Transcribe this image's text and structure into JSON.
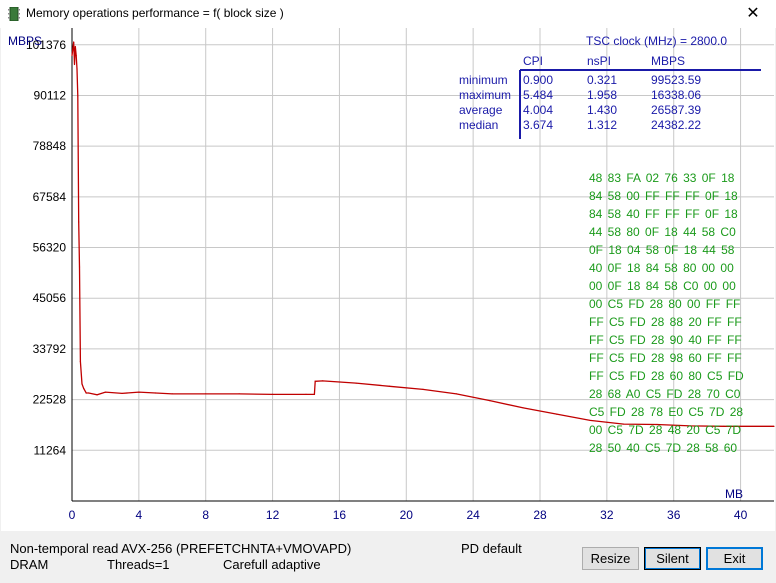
{
  "window": {
    "title": "Memory operations performance = f( block size )"
  },
  "chart_data": {
    "type": "line",
    "title": "",
    "ylabel": "MBPS",
    "xlabel": "MB",
    "x_ticks": [
      0,
      4,
      8,
      12,
      16,
      20,
      24,
      28,
      32,
      36,
      40
    ],
    "y_ticks": [
      11264,
      22528,
      33792,
      45056,
      56320,
      67584,
      78848,
      90112,
      101376
    ],
    "xlim": [
      0,
      42
    ],
    "ylim": [
      0,
      104000
    ],
    "grid": true,
    "series": [
      {
        "color": "#c00000",
        "points": [
          [
            0,
            99000
          ],
          [
            0.1,
            102000
          ],
          [
            0.15,
            97000
          ],
          [
            0.2,
            101000
          ],
          [
            0.25,
            99000
          ],
          [
            0.3,
            96000
          ],
          [
            0.35,
            90000
          ],
          [
            0.4,
            62000
          ],
          [
            0.45,
            52000
          ],
          [
            0.5,
            31000
          ],
          [
            0.6,
            26000
          ],
          [
            0.7,
            25000
          ],
          [
            0.85,
            24000
          ],
          [
            1.0,
            24000
          ],
          [
            1.5,
            23600
          ],
          [
            2,
            24200
          ],
          [
            3,
            23900
          ],
          [
            4,
            24200
          ],
          [
            5,
            24000
          ],
          [
            6,
            23800
          ],
          [
            8,
            23800
          ],
          [
            10,
            23800
          ],
          [
            12,
            23700
          ],
          [
            14,
            23700
          ],
          [
            14.5,
            23700
          ],
          [
            14.55,
            26600
          ],
          [
            15,
            26700
          ],
          [
            17,
            26200
          ],
          [
            19,
            25500
          ],
          [
            21,
            24800
          ],
          [
            23,
            23800
          ],
          [
            25,
            22300
          ],
          [
            27,
            20700
          ],
          [
            29,
            19300
          ],
          [
            31,
            17900
          ],
          [
            33,
            17100
          ],
          [
            35,
            17000
          ],
          [
            37,
            16700
          ],
          [
            39,
            16600
          ],
          [
            42,
            16600
          ]
        ]
      }
    ]
  },
  "tsc": {
    "label": "TSC clock (MHz) = ",
    "value": "2800.0"
  },
  "stats": {
    "headers": [
      "CPI",
      "nsPI",
      "MBPS"
    ],
    "rows": [
      {
        "name": "minimum",
        "cpi": "0.900",
        "nspi": "0.321",
        "mbps": "99523.59"
      },
      {
        "name": "maximum",
        "cpi": "5.484",
        "nspi": "1.958",
        "mbps": "16338.06"
      },
      {
        "name": "average",
        "cpi": "4.004",
        "nspi": "1.430",
        "mbps": "26587.39"
      },
      {
        "name": "median",
        "cpi": "3.674",
        "nspi": "1.312",
        "mbps": "24382.22"
      }
    ]
  },
  "hex_dump": [
    "48 83 FA 02 76 33 0F 18",
    "84 58 00 FF FF FF 0F 18",
    "84 58 40 FF FF FF 0F 18",
    "44 58 80 0F 18 44 58 C0",
    "0F 18 04 58 0F 18 44 58",
    "40 0F 18 84 58 80 00 00",
    "00 0F 18 84 58 C0 00 00",
    "00 C5 FD 28 80 00 FF FF",
    "FF C5 FD 28 88 20 FF FF",
    "FF C5 FD 28 90 40 FF FF",
    "FF C5 FD 28 98 60 FF FF",
    "FF C5 FD 28 60 80 C5 FD",
    "28 68 A0 C5 FD 28 70 C0",
    "C5 FD 28 78 E0 C5 7D 28",
    "00 C5 7D 28 48 20 C5 7D",
    "28 50 40 C5 7D 28 58 60"
  ],
  "status": {
    "method": "Non-temporal read AVX-256 (PREFETCHNTA+VMOVAPD)",
    "mode": "PD default",
    "target": "DRAM",
    "threads": "Threads=1",
    "adaptive": "Carefull adaptive"
  },
  "buttons": {
    "resize": "Resize",
    "silent": "Silent",
    "exit": "Exit"
  },
  "colors": {
    "axis_text": "#000080",
    "grid": "#c8c8c8",
    "series": "#c00000",
    "stats_text": "#1a1aa8",
    "hex_text": "#1a9a1a"
  }
}
